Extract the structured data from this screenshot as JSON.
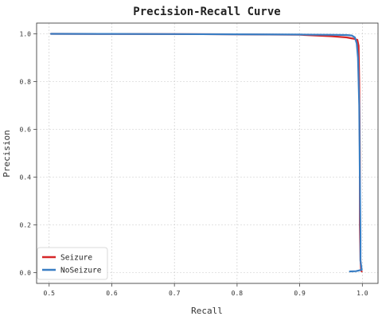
{
  "chart_data": {
    "type": "line",
    "title": "Precision-Recall Curve",
    "xlabel": "Recall",
    "ylabel": "Precision",
    "xlim": [
      0.48,
      1.025
    ],
    "ylim": [
      -0.045,
      1.045
    ],
    "xticks": [
      "0.5",
      "0.6",
      "0.7",
      "0.8",
      "0.9",
      "1.0"
    ],
    "yticks": [
      "0.0",
      "0.2",
      "0.4",
      "0.6",
      "0.8",
      "1.0"
    ],
    "grid": true,
    "legend_position": "lower-left",
    "series": [
      {
        "name": "Seizure",
        "color": "#d62728",
        "points": [
          [
            0.503,
            1.0
          ],
          [
            0.6,
            0.9995
          ],
          [
            0.7,
            0.999
          ],
          [
            0.8,
            0.998
          ],
          [
            0.9,
            0.996
          ],
          [
            0.95,
            0.99
          ],
          [
            0.975,
            0.985
          ],
          [
            0.985,
            0.98
          ],
          [
            0.992,
            0.975
          ],
          [
            0.994,
            0.95
          ],
          [
            0.995,
            0.8
          ],
          [
            0.996,
            0.5
          ],
          [
            0.996,
            0.2
          ],
          [
            0.997,
            0.05
          ],
          [
            0.998,
            0.01
          ],
          [
            0.999,
            0.005
          ]
        ]
      },
      {
        "name": "NoSeizure",
        "color": "#3a7ec4",
        "points": [
          [
            0.503,
            1.0
          ],
          [
            0.6,
            0.9995
          ],
          [
            0.7,
            0.999
          ],
          [
            0.8,
            0.998
          ],
          [
            0.9,
            0.997
          ],
          [
            0.95,
            0.996
          ],
          [
            0.975,
            0.995
          ],
          [
            0.983,
            0.993
          ],
          [
            0.988,
            0.985
          ],
          [
            0.991,
            0.96
          ],
          [
            0.993,
            0.9
          ],
          [
            0.995,
            0.7
          ],
          [
            0.996,
            0.4
          ],
          [
            0.997,
            0.15
          ],
          [
            0.997,
            0.05
          ],
          [
            0.999,
            0.012
          ],
          [
            0.99,
            0.006
          ],
          [
            0.98,
            0.005
          ]
        ]
      }
    ]
  }
}
